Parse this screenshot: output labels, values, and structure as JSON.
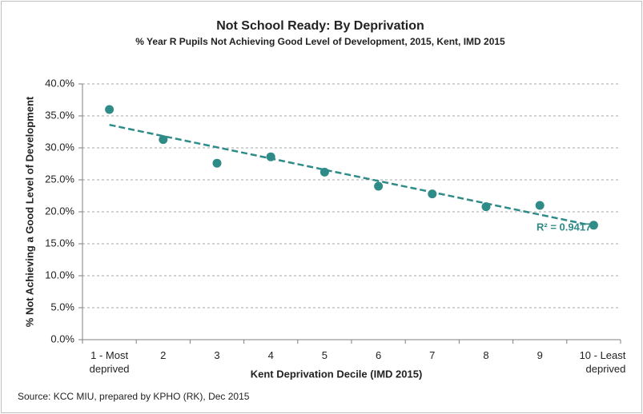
{
  "chart_data": {
    "type": "scatter",
    "title": "Not School Ready: By Deprivation",
    "subtitle": "% Year R Pupils Not Achieving Good Level of Development, 2015, Kent, IMD 2015",
    "x_label": "Kent Deprivation Decile (IMD 2015)",
    "y_label": "% Not Achieving a Good Level of Development",
    "source": "Source: KCC MIU, prepared by KPHO (RK), Dec 2015",
    "categories": [
      "1 - Most deprived",
      "2",
      "3",
      "4",
      "5",
      "6",
      "7",
      "8",
      "9",
      "10 - Least deprived"
    ],
    "values": [
      36.0,
      31.3,
      27.6,
      28.6,
      26.2,
      24.0,
      22.8,
      20.8,
      21.0,
      17.9
    ],
    "color": "#2e8b88",
    "trendline": {
      "start": 33.6,
      "end": 17.8,
      "label": "R² = 0.9417",
      "color": "#2e8b88"
    },
    "ylim": [
      0,
      40
    ],
    "yticks": [
      {
        "value": 0,
        "label": "0.0%"
      },
      {
        "value": 5,
        "label": "5.0%"
      },
      {
        "value": 10,
        "label": "10.0%"
      },
      {
        "value": 15,
        "label": "15.0%"
      },
      {
        "value": 20,
        "label": "20.0%"
      },
      {
        "value": 25,
        "label": "25.0%"
      },
      {
        "value": 30,
        "label": "30.0%"
      },
      {
        "value": 35,
        "label": "35.0%"
      },
      {
        "value": 40,
        "label": "40.0%"
      }
    ],
    "grid": true
  }
}
